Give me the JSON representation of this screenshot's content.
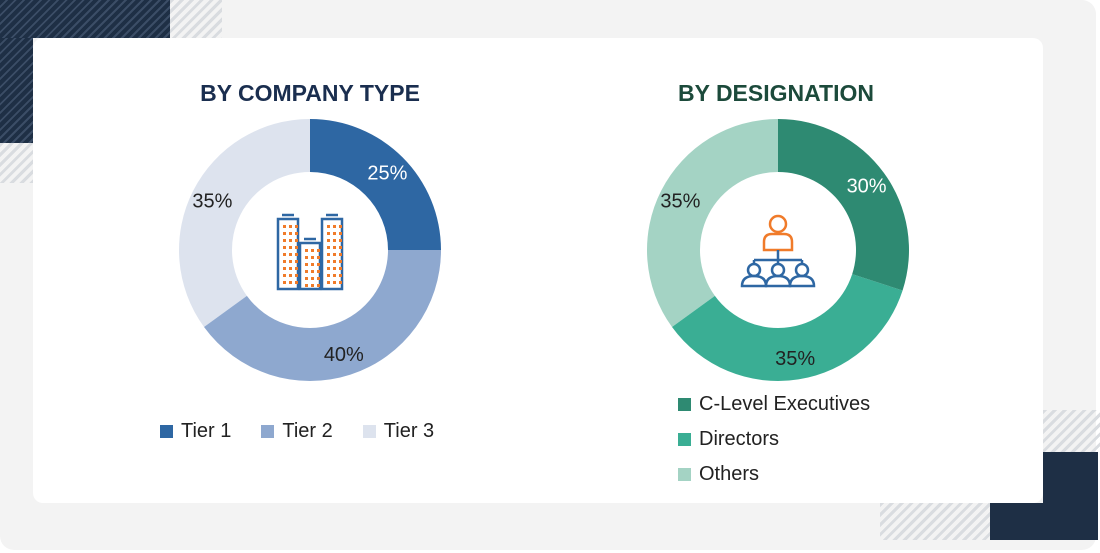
{
  "chart_data": [
    {
      "type": "pie",
      "donut": true,
      "title": "BY COMPANY TYPE",
      "categories": [
        "Tier 1",
        "Tier 2",
        "Tier 3"
      ],
      "values": [
        25,
        40,
        35
      ],
      "labels": [
        "25%",
        "40%",
        "35%"
      ],
      "colors": [
        "#2e67a3",
        "#8ea8cf",
        "#dde3ee"
      ],
      "label_colors": [
        "#ffffff",
        "#222222",
        "#222222"
      ],
      "title_color": "#1a2e4f",
      "center_icon": "buildings-icon",
      "legend_placement": "bottom"
    },
    {
      "type": "pie",
      "donut": true,
      "title": "BY DESIGNATION",
      "categories": [
        "C-Level Executives",
        "Directors",
        "Others"
      ],
      "values": [
        30,
        35,
        35
      ],
      "labels": [
        "30%",
        "35%",
        "35%"
      ],
      "colors": [
        "#2e8a72",
        "#3aae94",
        "#a4d3c4"
      ],
      "label_colors": [
        "#ffffff",
        "#222222",
        "#222222"
      ],
      "title_color": "#1c4a3b",
      "center_icon": "org-hierarchy-icon",
      "legend_placement": "bottom"
    }
  ]
}
